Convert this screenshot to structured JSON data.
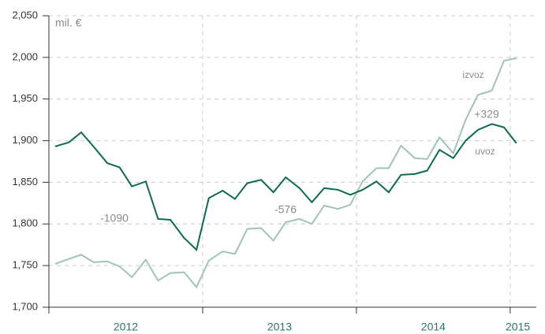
{
  "chart_data": {
    "type": "line",
    "unit": "mil. €",
    "x": [
      2012.04,
      2012.13,
      2012.21,
      2012.29,
      2012.38,
      2012.46,
      2012.54,
      2012.63,
      2012.71,
      2012.79,
      2012.88,
      2012.96,
      2013.04,
      2013.13,
      2013.21,
      2013.29,
      2013.38,
      2013.46,
      2013.54,
      2013.63,
      2013.71,
      2013.79,
      2013.88,
      2013.96,
      2014.04,
      2014.13,
      2014.21,
      2014.29,
      2014.38,
      2014.46,
      2014.54,
      2014.63,
      2014.71,
      2014.79,
      2014.88,
      2014.96,
      2015.04
    ],
    "series": [
      {
        "name": "izvoz",
        "color": "#9fc5b5",
        "values": [
          1752,
          1758,
          1763,
          1754,
          1755,
          1749,
          1736,
          1757,
          1732,
          1741,
          1742,
          1724,
          1756,
          1767,
          1764,
          1794,
          1795,
          1780,
          1802,
          1806,
          1800,
          1822,
          1818,
          1823,
          1851,
          1867,
          1867,
          1894,
          1879,
          1878,
          1904,
          1885,
          1925,
          1955,
          1960,
          1996,
          1999
        ]
      },
      {
        "name": "uvoz",
        "color": "#0d6a4c",
        "values": [
          1893,
          1898,
          1910,
          1893,
          1873,
          1868,
          1845,
          1851,
          1806,
          1805,
          1783,
          1769,
          1831,
          1840,
          1830,
          1849,
          1853,
          1838,
          1856,
          1843,
          1826,
          1843,
          1841,
          1835,
          1841,
          1851,
          1838,
          1859,
          1860,
          1864,
          1889,
          1879,
          1900,
          1913,
          1920,
          1916,
          1897
        ]
      }
    ],
    "annotations": [
      "-1090",
      "-576",
      "+329"
    ],
    "xlim": [
      2012,
      2015.17
    ],
    "xticks": [
      {
        "value": 2012.5,
        "label": "2012"
      },
      {
        "value": 2013.5,
        "label": "2013"
      },
      {
        "value": 2014.5,
        "label": "2014"
      },
      {
        "value": 2015.05,
        "label": "2015"
      }
    ],
    "xgrid": [
      2012,
      2013,
      2014,
      2015
    ],
    "ylim": [
      1700,
      2050
    ],
    "yticks": [
      {
        "value": 1700,
        "label": "1,700"
      },
      {
        "value": 1750,
        "label": "1,750"
      },
      {
        "value": 1800,
        "label": "1,800"
      },
      {
        "value": 1850,
        "label": "1,850"
      },
      {
        "value": 1900,
        "label": "1,900"
      },
      {
        "value": 1950,
        "label": "1,950"
      },
      {
        "value": 2000,
        "label": "2,000"
      },
      {
        "value": 2050,
        "label": "2,050"
      }
    ],
    "grid": true
  }
}
